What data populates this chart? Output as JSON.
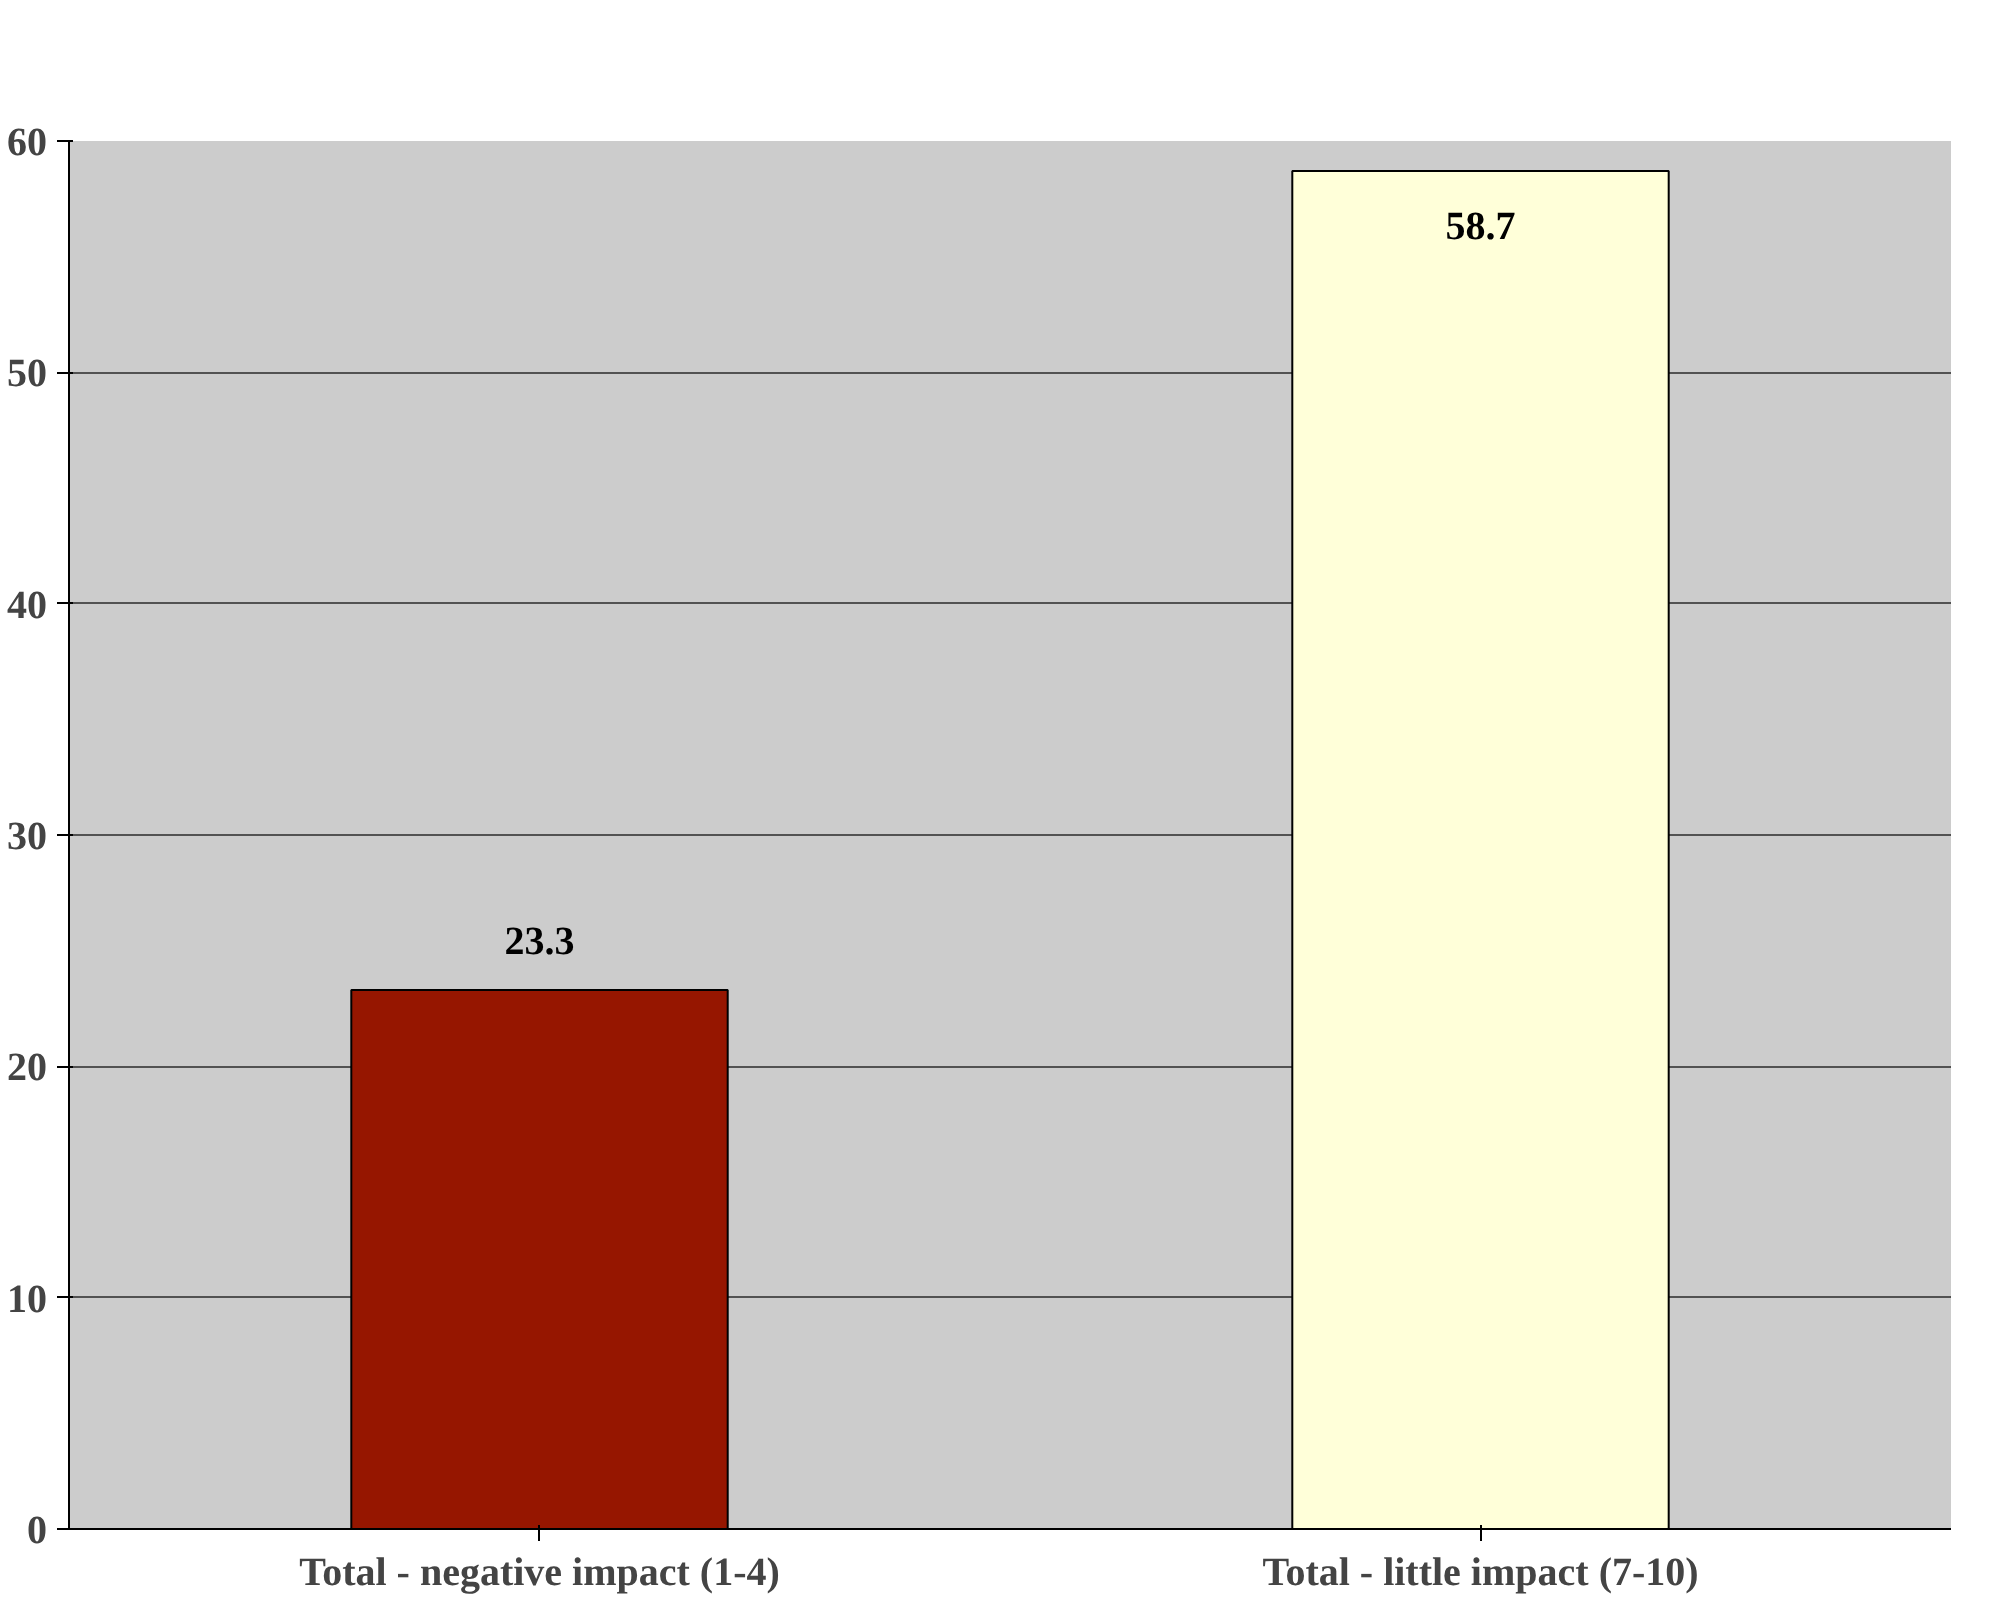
{
  "chart_data": {
    "type": "bar",
    "categories": [
      "Total - negative impact (1-4)",
      "Total - little impact (7-10)"
    ],
    "values": [
      23.3,
      58.7
    ],
    "colors": [
      "#961600",
      "#ffffd9"
    ],
    "ylim": [
      0,
      60
    ],
    "yticks": [
      0,
      10,
      20,
      30,
      40,
      50,
      60
    ],
    "grid": "y",
    "data_labels": true
  }
}
